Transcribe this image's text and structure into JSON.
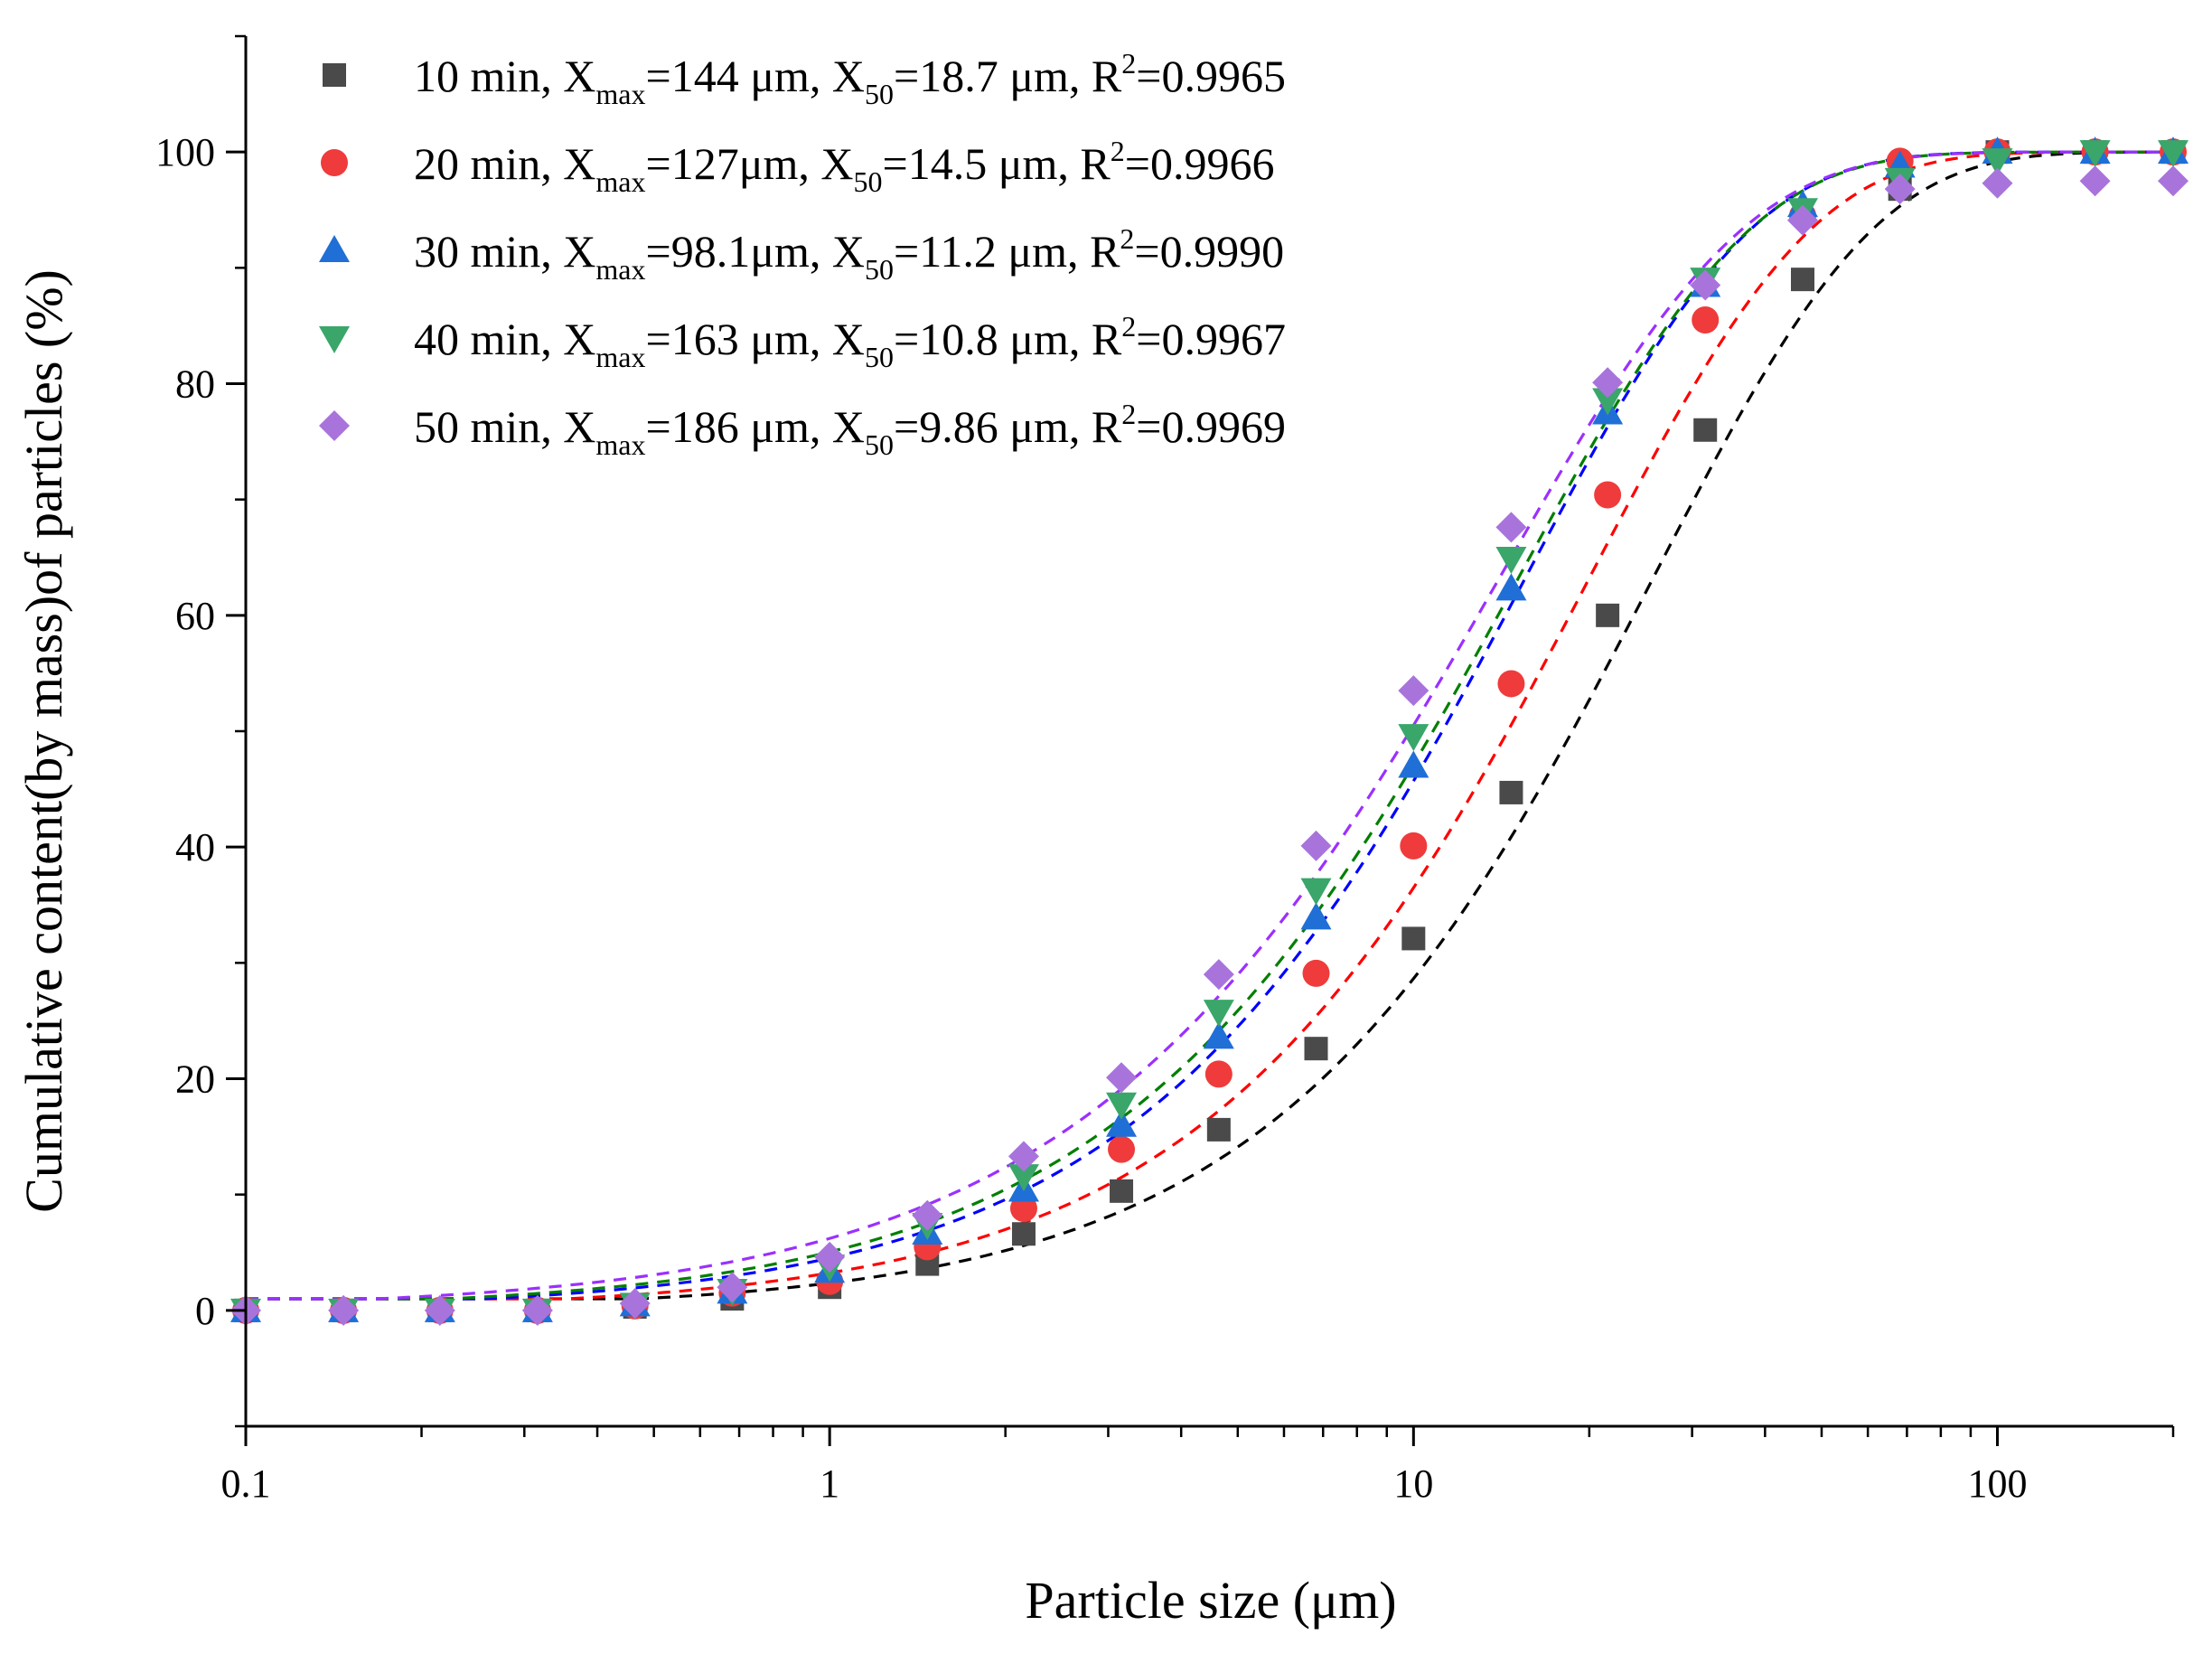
{
  "chart_data": {
    "type": "scatter",
    "xscale": "log",
    "xlim": [
      0.1,
      200
    ],
    "ylim": [
      -10,
      110
    ],
    "xlabel": "Particle size (μm)",
    "ylabel": "Cumulative content(by mass)of particles (%)",
    "x_ticks": [
      {
        "value": 0.1,
        "label": "0.1"
      },
      {
        "value": 1,
        "label": "1"
      },
      {
        "value": 10,
        "label": "10"
      },
      {
        "value": 100,
        "label": "100"
      }
    ],
    "y_ticks": [
      {
        "value": 0,
        "label": "0"
      },
      {
        "value": 20,
        "label": "20"
      },
      {
        "value": 40,
        "label": "40"
      },
      {
        "value": 60,
        "label": "60"
      },
      {
        "value": 80,
        "label": "80"
      },
      {
        "value": 100,
        "label": "100"
      }
    ],
    "x": [
      0.1,
      0.147,
      0.215,
      0.316,
      0.464,
      0.681,
      1.0,
      1.47,
      2.15,
      3.16,
      4.64,
      6.81,
      10.0,
      14.7,
      21.5,
      31.6,
      46.4,
      68.1,
      100,
      147,
      200
    ],
    "legend_position": "top-left",
    "series": [
      {
        "name": "10 min",
        "legend": {
          "time": "10 min",
          "xmax_sym": "X",
          "xmax_sub": "max",
          "xmax_val": "=144 μm",
          "x50_sym": "X",
          "x50_sub": "50",
          "x50_val": "=18.7 μm",
          "r_sym": "R",
          "r_sup": "2",
          "r_val": "=0.9965"
        },
        "marker": "square",
        "color": "#4a4a4a",
        "fit_color": "#000000",
        "values": [
          0,
          0,
          0,
          0,
          0.3,
          1.0,
          2.0,
          4.0,
          6.6,
          10.3,
          15.6,
          22.6,
          32.1,
          44.7,
          60.0,
          76.0,
          89.0,
          96.8,
          100,
          100,
          100
        ],
        "fit": {
          "xmax": 144,
          "x50": 18.7,
          "r2": 0.9965
        }
      },
      {
        "name": "20 min",
        "legend": {
          "time": "20 min",
          "xmax_sym": "X",
          "xmax_sub": "max",
          "xmax_val": "=127μm",
          "x50_sym": "X",
          "x50_sub": "50",
          "x50_val": "=14.5 μm",
          "r_sym": "R",
          "r_sup": "2",
          "r_val": "=0.9966"
        },
        "marker": "circle",
        "color": "#ef3b3b",
        "fit_color": "#ff0000",
        "values": [
          0,
          0,
          0,
          0,
          0.4,
          1.5,
          2.5,
          5.5,
          8.8,
          13.9,
          20.4,
          29.1,
          40.1,
          54.1,
          70.4,
          85.5,
          94.5,
          99.2,
          100,
          100,
          100
        ],
        "fit": {
          "xmax": 127,
          "x50": 14.5,
          "r2": 0.9966
        }
      },
      {
        "name": "30 min",
        "legend": {
          "time": "30 min",
          "xmax_sym": "X",
          "xmax_sub": "max",
          "xmax_val": "=98.1μm",
          "x50_sym": "X",
          "x50_sub": "50",
          "x50_val": "=11.2 μm",
          "r_sym": "R",
          "r_sup": "2",
          "r_val": "=0.9990"
        },
        "marker": "triangle-up",
        "color": "#1f6fd6",
        "fit_color": "#0000ff",
        "values": [
          0,
          0,
          0,
          0,
          0.5,
          1.6,
          3.4,
          6.7,
          10.4,
          16.0,
          23.6,
          33.9,
          47.0,
          62.3,
          77.5,
          88.5,
          95.4,
          98.8,
          100,
          100,
          100
        ],
        "fit": {
          "xmax": 98.1,
          "x50": 11.2,
          "r2": 0.999
        }
      },
      {
        "name": "40 min",
        "legend": {
          "time": "40 min",
          "xmax_sym": "X",
          "xmax_sub": "max",
          "xmax_val": "=163 μm",
          "x50_sym": "X",
          "x50_sub": "50",
          "x50_val": "=10.8 μm",
          "r_sym": "R",
          "r_sup": "2",
          "r_val": "=0.9967"
        },
        "marker": "triangle-down",
        "color": "#3aa66a",
        "fit_color": "#007f00",
        "values": [
          0,
          0,
          0,
          0,
          0.5,
          1.7,
          3.8,
          7.4,
          11.6,
          17.8,
          25.8,
          36.3,
          49.6,
          64.9,
          78.6,
          89.0,
          95.0,
          97.6,
          99.3,
          100,
          100
        ],
        "fit": {
          "xmax": 163,
          "x50": 10.8,
          "r2": 0.9967
        }
      },
      {
        "name": "50 min",
        "legend": {
          "time": "50 min",
          "xmax_sym": "X",
          "xmax_sub": "max",
          "xmax_val": "=186 μm",
          "x50_sym": "X",
          "x50_sub": "50",
          "x50_val": "=9.86 μm",
          "r_sym": "R",
          "r_sup": "2",
          "r_val": "=0.9969"
        },
        "marker": "diamond",
        "color": "#a874dc",
        "fit_color": "#9b30ff",
        "values": [
          0,
          0,
          0,
          0,
          0.6,
          2.0,
          4.6,
          8.2,
          13.3,
          20.1,
          29.0,
          40.1,
          53.5,
          67.6,
          80.1,
          88.5,
          94.1,
          96.8,
          97.3,
          97.5,
          97.5
        ],
        "fit": {
          "xmax": 186,
          "x50": 9.86,
          "r2": 0.9969
        }
      }
    ]
  }
}
